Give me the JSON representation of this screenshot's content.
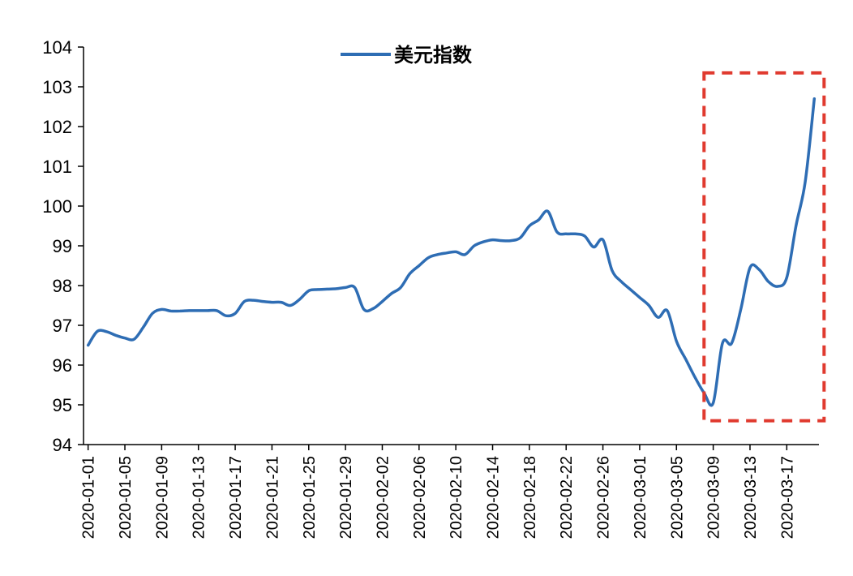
{
  "chart_data": {
    "type": "line",
    "legend": {
      "position": "top-center"
    },
    "series": [
      {
        "name": "美元指数",
        "color": "#2E6DB4",
        "points": [
          [
            "2020-01-01",
            96.5
          ],
          [
            "2020-01-02",
            96.85
          ],
          [
            "2020-01-03",
            96.84
          ],
          [
            "2020-01-04",
            96.75
          ],
          [
            "2020-01-05",
            96.68
          ],
          [
            "2020-01-06",
            96.65
          ],
          [
            "2020-01-07",
            96.95
          ],
          [
            "2020-01-08",
            97.3
          ],
          [
            "2020-01-09",
            97.4
          ],
          [
            "2020-01-10",
            97.36
          ],
          [
            "2020-01-11",
            97.36
          ],
          [
            "2020-01-12",
            97.37
          ],
          [
            "2020-01-13",
            97.37
          ],
          [
            "2020-01-14",
            97.37
          ],
          [
            "2020-01-15",
            97.37
          ],
          [
            "2020-01-16",
            97.24
          ],
          [
            "2020-01-17",
            97.3
          ],
          [
            "2020-01-18",
            97.6
          ],
          [
            "2020-01-19",
            97.63
          ],
          [
            "2020-01-20",
            97.6
          ],
          [
            "2020-01-21",
            97.58
          ],
          [
            "2020-01-22",
            97.58
          ],
          [
            "2020-01-23",
            97.5
          ],
          [
            "2020-01-24",
            97.65
          ],
          [
            "2020-01-25",
            97.87
          ],
          [
            "2020-01-26",
            97.9
          ],
          [
            "2020-01-27",
            97.91
          ],
          [
            "2020-01-28",
            97.92
          ],
          [
            "2020-01-29",
            97.95
          ],
          [
            "2020-01-30",
            97.95
          ],
          [
            "2020-01-31",
            97.4
          ],
          [
            "2020-02-01",
            97.42
          ],
          [
            "2020-02-02",
            97.6
          ],
          [
            "2020-02-03",
            97.8
          ],
          [
            "2020-02-04",
            97.95
          ],
          [
            "2020-02-05",
            98.3
          ],
          [
            "2020-02-06",
            98.5
          ],
          [
            "2020-02-07",
            98.7
          ],
          [
            "2020-02-08",
            98.78
          ],
          [
            "2020-02-09",
            98.82
          ],
          [
            "2020-02-10",
            98.85
          ],
          [
            "2020-02-11",
            98.78
          ],
          [
            "2020-02-12",
            99.0
          ],
          [
            "2020-02-13",
            99.1
          ],
          [
            "2020-02-14",
            99.15
          ],
          [
            "2020-02-15",
            99.13
          ],
          [
            "2020-02-16",
            99.13
          ],
          [
            "2020-02-17",
            99.2
          ],
          [
            "2020-02-18",
            99.5
          ],
          [
            "2020-02-19",
            99.65
          ],
          [
            "2020-02-20",
            99.87
          ],
          [
            "2020-02-21",
            99.35
          ],
          [
            "2020-02-22",
            99.3
          ],
          [
            "2020-02-23",
            99.3
          ],
          [
            "2020-02-24",
            99.25
          ],
          [
            "2020-02-25",
            98.97
          ],
          [
            "2020-02-26",
            99.15
          ],
          [
            "2020-02-27",
            98.38
          ],
          [
            "2020-02-28",
            98.1
          ],
          [
            "2020-02-29",
            97.9
          ],
          [
            "2020-03-01",
            97.7
          ],
          [
            "2020-03-02",
            97.5
          ],
          [
            "2020-03-03",
            97.2
          ],
          [
            "2020-03-04",
            97.37
          ],
          [
            "2020-03-05",
            96.6
          ],
          [
            "2020-03-06",
            96.15
          ],
          [
            "2020-03-07",
            95.7
          ],
          [
            "2020-03-08",
            95.3
          ],
          [
            "2020-03-09",
            95.05
          ],
          [
            "2020-03-10",
            96.55
          ],
          [
            "2020-03-11",
            96.55
          ],
          [
            "2020-03-12",
            97.4
          ],
          [
            "2020-03-13",
            98.45
          ],
          [
            "2020-03-14",
            98.4
          ],
          [
            "2020-03-15",
            98.1
          ],
          [
            "2020-03-16",
            97.98
          ],
          [
            "2020-03-17",
            98.2
          ],
          [
            "2020-03-18",
            99.5
          ],
          [
            "2020-03-19",
            100.6
          ],
          [
            "2020-03-20",
            102.7
          ]
        ]
      }
    ],
    "x_ticks": [
      "2020-01-01",
      "2020-01-05",
      "2020-01-09",
      "2020-01-13",
      "2020-01-17",
      "2020-01-21",
      "2020-01-25",
      "2020-01-29",
      "2020-02-02",
      "2020-02-06",
      "2020-02-10",
      "2020-02-14",
      "2020-02-18",
      "2020-02-22",
      "2020-02-26",
      "2020-03-01",
      "2020-03-05",
      "2020-03-09",
      "2020-03-13",
      "2020-03-17"
    ],
    "ylim": [
      94,
      104
    ],
    "y_ticks": [
      94,
      95,
      96,
      97,
      98,
      99,
      100,
      101,
      102,
      103,
      104
    ],
    "grid": false,
    "highlight": {
      "style": "dashed-box",
      "color": "#E03A2F",
      "x_range": [
        "2020-03-08",
        "2020-03-20"
      ],
      "y_range": [
        94.6,
        103.35
      ]
    }
  }
}
